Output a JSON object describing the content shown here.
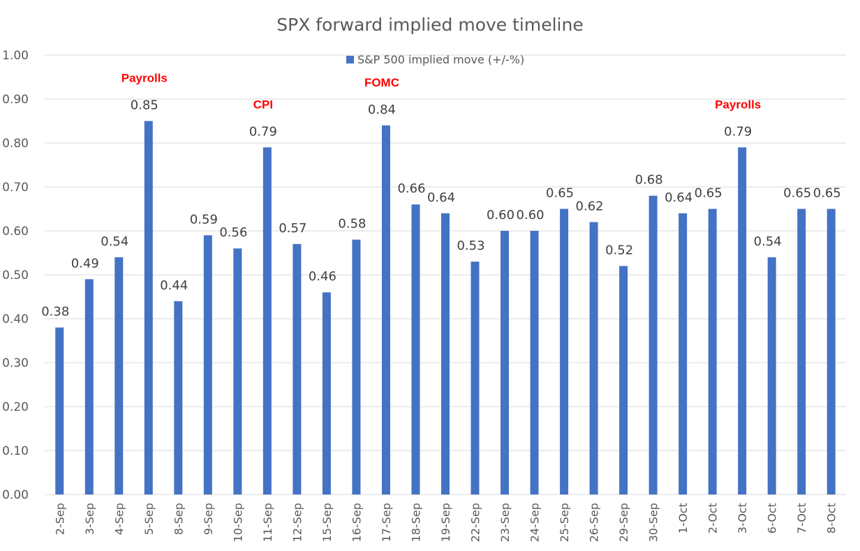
{
  "chart_data": {
    "type": "bar",
    "title": "SPX forward implied move timeline",
    "xlabel": "",
    "ylabel": "",
    "ylim": [
      0,
      1.0
    ],
    "ytick_step": 0.1,
    "grid": true,
    "legend_position": "top-center",
    "categories": [
      "2-Sep",
      "3-Sep",
      "4-Sep",
      "5-Sep",
      "8-Sep",
      "9-Sep",
      "10-Sep",
      "11-Sep",
      "12-Sep",
      "15-Sep",
      "16-Sep",
      "17-Sep",
      "18-Sep",
      "19-Sep",
      "22-Sep",
      "23-Sep",
      "24-Sep",
      "25-Sep",
      "26-Sep",
      "29-Sep",
      "30-Sep",
      "1-Oct",
      "2-Oct",
      "3-Oct",
      "6-Oct",
      "7-Oct",
      "8-Oct"
    ],
    "series": [
      {
        "name": "S&P 500 implied move (+/-%)",
        "color": "#4472c4",
        "values": [
          0.38,
          0.49,
          0.54,
          0.85,
          0.44,
          0.59,
          0.56,
          0.79,
          0.57,
          0.46,
          0.58,
          0.84,
          0.66,
          0.64,
          0.53,
          0.6,
          0.6,
          0.65,
          0.62,
          0.52,
          0.68,
          0.64,
          0.65,
          0.79,
          0.54,
          0.65,
          0.65
        ]
      }
    ],
    "annotations": [
      {
        "category": "5-Sep",
        "text": "Payrolls",
        "color": "#ff0000"
      },
      {
        "category": "11-Sep",
        "text": "CPI",
        "color": "#ff0000"
      },
      {
        "category": "17-Sep",
        "text": "FOMC",
        "color": "#ff0000"
      },
      {
        "category": "3-Oct",
        "text": "Payrolls",
        "color": "#ff0000"
      }
    ]
  }
}
